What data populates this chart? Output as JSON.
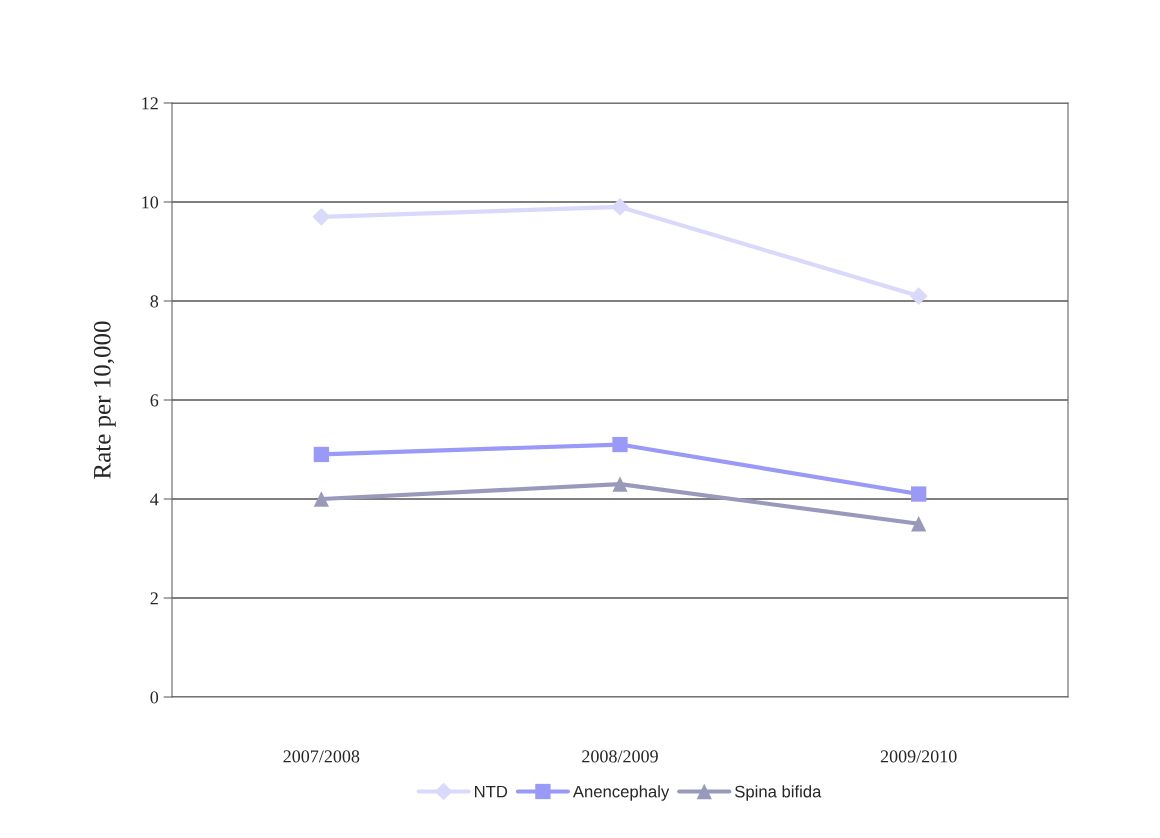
{
  "chart_data": {
    "type": "line",
    "ylabel": "Rate per 10,000",
    "categories": [
      "2007/2008",
      "2008/2009",
      "2009/2010"
    ],
    "series": [
      {
        "name": "NTD",
        "color": "#d9d9fb",
        "values": [
          9.7,
          9.9,
          8.1
        ],
        "marker": "diamond"
      },
      {
        "name": "Anencephaly",
        "color": "#9999f8",
        "values": [
          4.9,
          5.1,
          4.1
        ],
        "marker": "square"
      },
      {
        "name": "Spina bifida",
        "color": "#9999bb",
        "values": [
          4.0,
          4.3,
          3.5
        ],
        "marker": "triangle"
      }
    ],
    "ylim": [
      0,
      12
    ],
    "yticks": [
      0,
      2,
      4,
      6,
      8,
      10,
      12
    ],
    "grid": "y",
    "legend": "bottom",
    "line_style": "solid"
  }
}
